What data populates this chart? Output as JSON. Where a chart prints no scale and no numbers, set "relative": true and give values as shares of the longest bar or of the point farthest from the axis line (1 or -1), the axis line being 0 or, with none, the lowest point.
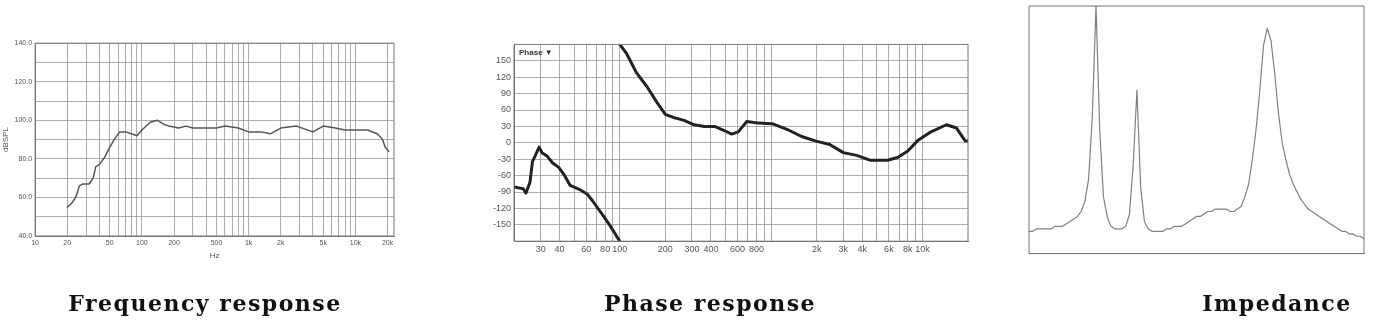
{
  "chart_data": [
    {
      "type": "line",
      "title": "Frequency response",
      "xlabel": "Hz",
      "ylabel": "dBSPL",
      "log": "x",
      "grid": true,
      "legend": false,
      "marker": "none",
      "line_style": "solid",
      "xlim": [
        10,
        23000
      ],
      "xticks": [
        10,
        20,
        {
          "value": 30,
          "label": null
        },
        {
          "value": 40,
          "label": null
        },
        50,
        {
          "value": 60,
          "label": null
        },
        {
          "value": 70,
          "label": null
        },
        {
          "value": 80,
          "label": null
        },
        {
          "value": 90,
          "label": null
        },
        100,
        200,
        {
          "value": 300,
          "label": null
        },
        {
          "value": 400,
          "label": null
        },
        500,
        {
          "value": 600,
          "label": null
        },
        {
          "value": 700,
          "label": null
        },
        {
          "value": 800,
          "label": null
        },
        {
          "value": 900,
          "label": null
        },
        {
          "value": 1000,
          "label": "1k"
        },
        {
          "value": 2000,
          "label": "2k"
        },
        {
          "value": 3000,
          "label": null
        },
        {
          "value": 4000,
          "label": null
        },
        {
          "value": 5000,
          "label": "5k"
        },
        {
          "value": 6000,
          "label": null
        },
        {
          "value": 7000,
          "label": null
        },
        {
          "value": 8000,
          "label": null
        },
        {
          "value": 9000,
          "label": null
        },
        {
          "value": 10000,
          "label": "10k"
        },
        {
          "value": 20000,
          "label": "20k"
        }
      ],
      "ylim": [
        40,
        140
      ],
      "yticks": [
        {
          "value": 40,
          "label": "40.0"
        },
        {
          "value": 50,
          "label": null
        },
        {
          "value": 60,
          "label": "60.0"
        },
        {
          "value": 70,
          "label": null
        },
        {
          "value": 80,
          "label": "80.0"
        },
        {
          "value": 90,
          "label": null
        },
        {
          "value": 100,
          "label": "100.0"
        },
        {
          "value": 110,
          "label": null
        },
        {
          "value": 120,
          "label": "120.0"
        },
        {
          "value": 130,
          "label": null
        },
        {
          "value": 140,
          "label": "140.0"
        }
      ],
      "series": [
        {
          "color": "#555555",
          "x": [
            20,
            22,
            24,
            26,
            28,
            32,
            35,
            37,
            40,
            45,
            50,
            55,
            62,
            70,
            80,
            90,
            100,
            120,
            140,
            160,
            180,
            220,
            260,
            300,
            400,
            500,
            600,
            800,
            1000,
            1300,
            1600,
            2000,
            2800,
            4000,
            5000,
            6500,
            8000,
            10000,
            13000,
            16000,
            18000,
            19000,
            20500
          ],
          "values": [
            55,
            57,
            60,
            66,
            67,
            67,
            70,
            76,
            77,
            81,
            86,
            90,
            94,
            94,
            93,
            92,
            95,
            99,
            100,
            98,
            97,
            96,
            97,
            96,
            96,
            96,
            97,
            96,
            94,
            94,
            93,
            96,
            97,
            94,
            97,
            96,
            95,
            95,
            95,
            93,
            90,
            86,
            84
          ]
        }
      ]
    },
    {
      "type": "line",
      "title": "Phase response",
      "annotations": [
        "Phase ▼"
      ],
      "log": "x",
      "grid": true,
      "legend": false,
      "marker": "none",
      "line_style": "solid",
      "xlim": [
        20,
        20000
      ],
      "xticks": [
        30,
        40,
        {
          "value": 50,
          "label": null
        },
        60,
        {
          "value": 70,
          "label": null
        },
        80,
        {
          "value": 90,
          "label": null
        },
        100,
        200,
        300,
        400,
        {
          "value": 500,
          "label": null
        },
        600,
        {
          "value": 700,
          "label": null
        },
        800,
        {
          "value": 900,
          "label": null
        },
        {
          "value": 1000,
          "label": null
        },
        {
          "value": 2000,
          "label": "2k"
        },
        {
          "value": 3000,
          "label": "3k"
        },
        {
          "value": 4000,
          "label": "4k"
        },
        {
          "value": 5000,
          "label": null
        },
        {
          "value": 6000,
          "label": "6k"
        },
        {
          "value": 7000,
          "label": null
        },
        {
          "value": 8000,
          "label": "8k"
        },
        {
          "value": 9000,
          "label": null
        },
        {
          "value": 10000,
          "label": "10k"
        }
      ],
      "ylim": [
        -180,
        180
      ],
      "yticks": [
        -150,
        -120,
        -90,
        -60,
        -30,
        0,
        30,
        60,
        90,
        120,
        150
      ],
      "series": [
        {
          "color": "#222222",
          "x": [
            20,
            23,
            24,
            25.5,
            26.5,
            27.6,
            29.3,
            30.6,
            33,
            36,
            39.5,
            43,
            47,
            54,
            61,
            66,
            77,
            86,
            100
          ],
          "values": [
            -81,
            -84,
            -92,
            -72,
            -34,
            -24,
            -8,
            -18,
            -24,
            -37,
            -45,
            -59,
            -78,
            -85,
            -94,
            -106,
            -132,
            -151,
            -180
          ]
        },
        {
          "color": "#222222",
          "x": [
            100,
            111,
            129,
            151,
            176,
            200,
            228,
            266,
            310,
            362,
            423,
            494,
            548,
            607,
            690,
            829,
            1015,
            1310,
            1610,
            1980,
            2440,
            3000,
            3680,
            4530,
            5870,
            6850,
            8000,
            9300,
            11400,
            14400,
            16800,
            19100,
            20000
          ],
          "values": [
            180,
            163,
            128,
            103,
            74,
            52,
            46,
            41,
            33,
            30,
            30,
            22,
            16,
            20,
            39,
            36,
            35,
            23,
            11,
            3,
            -3,
            -18,
            -23,
            -32,
            -32,
            -27,
            -15,
            4,
            20,
            33,
            27,
            4,
            3
          ]
        }
      ]
    },
    {
      "type": "line",
      "title": "Impedance",
      "relative": true,
      "legend": false,
      "marker": "none",
      "line_style": "solid",
      "categories": [
        null,
        null,
        null,
        null,
        null,
        null,
        null,
        null,
        null,
        null,
        null,
        null,
        null,
        null,
        null,
        null,
        null,
        null,
        null,
        null,
        null,
        null,
        null,
        null,
        null,
        null,
        null,
        null,
        null,
        null,
        null,
        null,
        null,
        null,
        null,
        null,
        null,
        null,
        null,
        null,
        null,
        null,
        null,
        null,
        null,
        null,
        null,
        null,
        null,
        null,
        null,
        null,
        null,
        null,
        null,
        null,
        null,
        null,
        null,
        null,
        null,
        null,
        null,
        null,
        null,
        null,
        null,
        null,
        null,
        null,
        null,
        null,
        null,
        null,
        null,
        null,
        null,
        null,
        null,
        null,
        null,
        null,
        null,
        null,
        null,
        null,
        null,
        null,
        null,
        null,
        null
      ],
      "series": [
        {
          "color": "#808080",
          "values": [
            0.09,
            0.09,
            0.1,
            0.1,
            0.1,
            0.1,
            0.1,
            0.11,
            0.11,
            0.11,
            0.12,
            0.13,
            0.14,
            0.15,
            0.17,
            0.21,
            0.3,
            0.55,
            1,
            0.5,
            0.23,
            0.15,
            0.11,
            0.1,
            0.1,
            0.1,
            0.11,
            0.16,
            0.36,
            0.66,
            0.27,
            0.13,
            0.1,
            0.09,
            0.09,
            0.09,
            0.09,
            0.1,
            0.1,
            0.11,
            0.11,
            0.11,
            0.12,
            0.13,
            0.14,
            0.15,
            0.15,
            0.16,
            0.17,
            0.17,
            0.18,
            0.18,
            0.18,
            0.18,
            0.17,
            0.17,
            0.18,
            0.19,
            0.23,
            0.28,
            0.38,
            0.5,
            0.66,
            0.84,
            0.91,
            0.86,
            0.73,
            0.57,
            0.45,
            0.38,
            0.32,
            0.28,
            0.25,
            0.22,
            0.2,
            0.18,
            0.17,
            0.16,
            0.15,
            0.14,
            0.13,
            0.12,
            0.11,
            0.1,
            0.09,
            0.09,
            0.08,
            0.08,
            0.07,
            0.07,
            0.06
          ]
        }
      ]
    }
  ]
}
